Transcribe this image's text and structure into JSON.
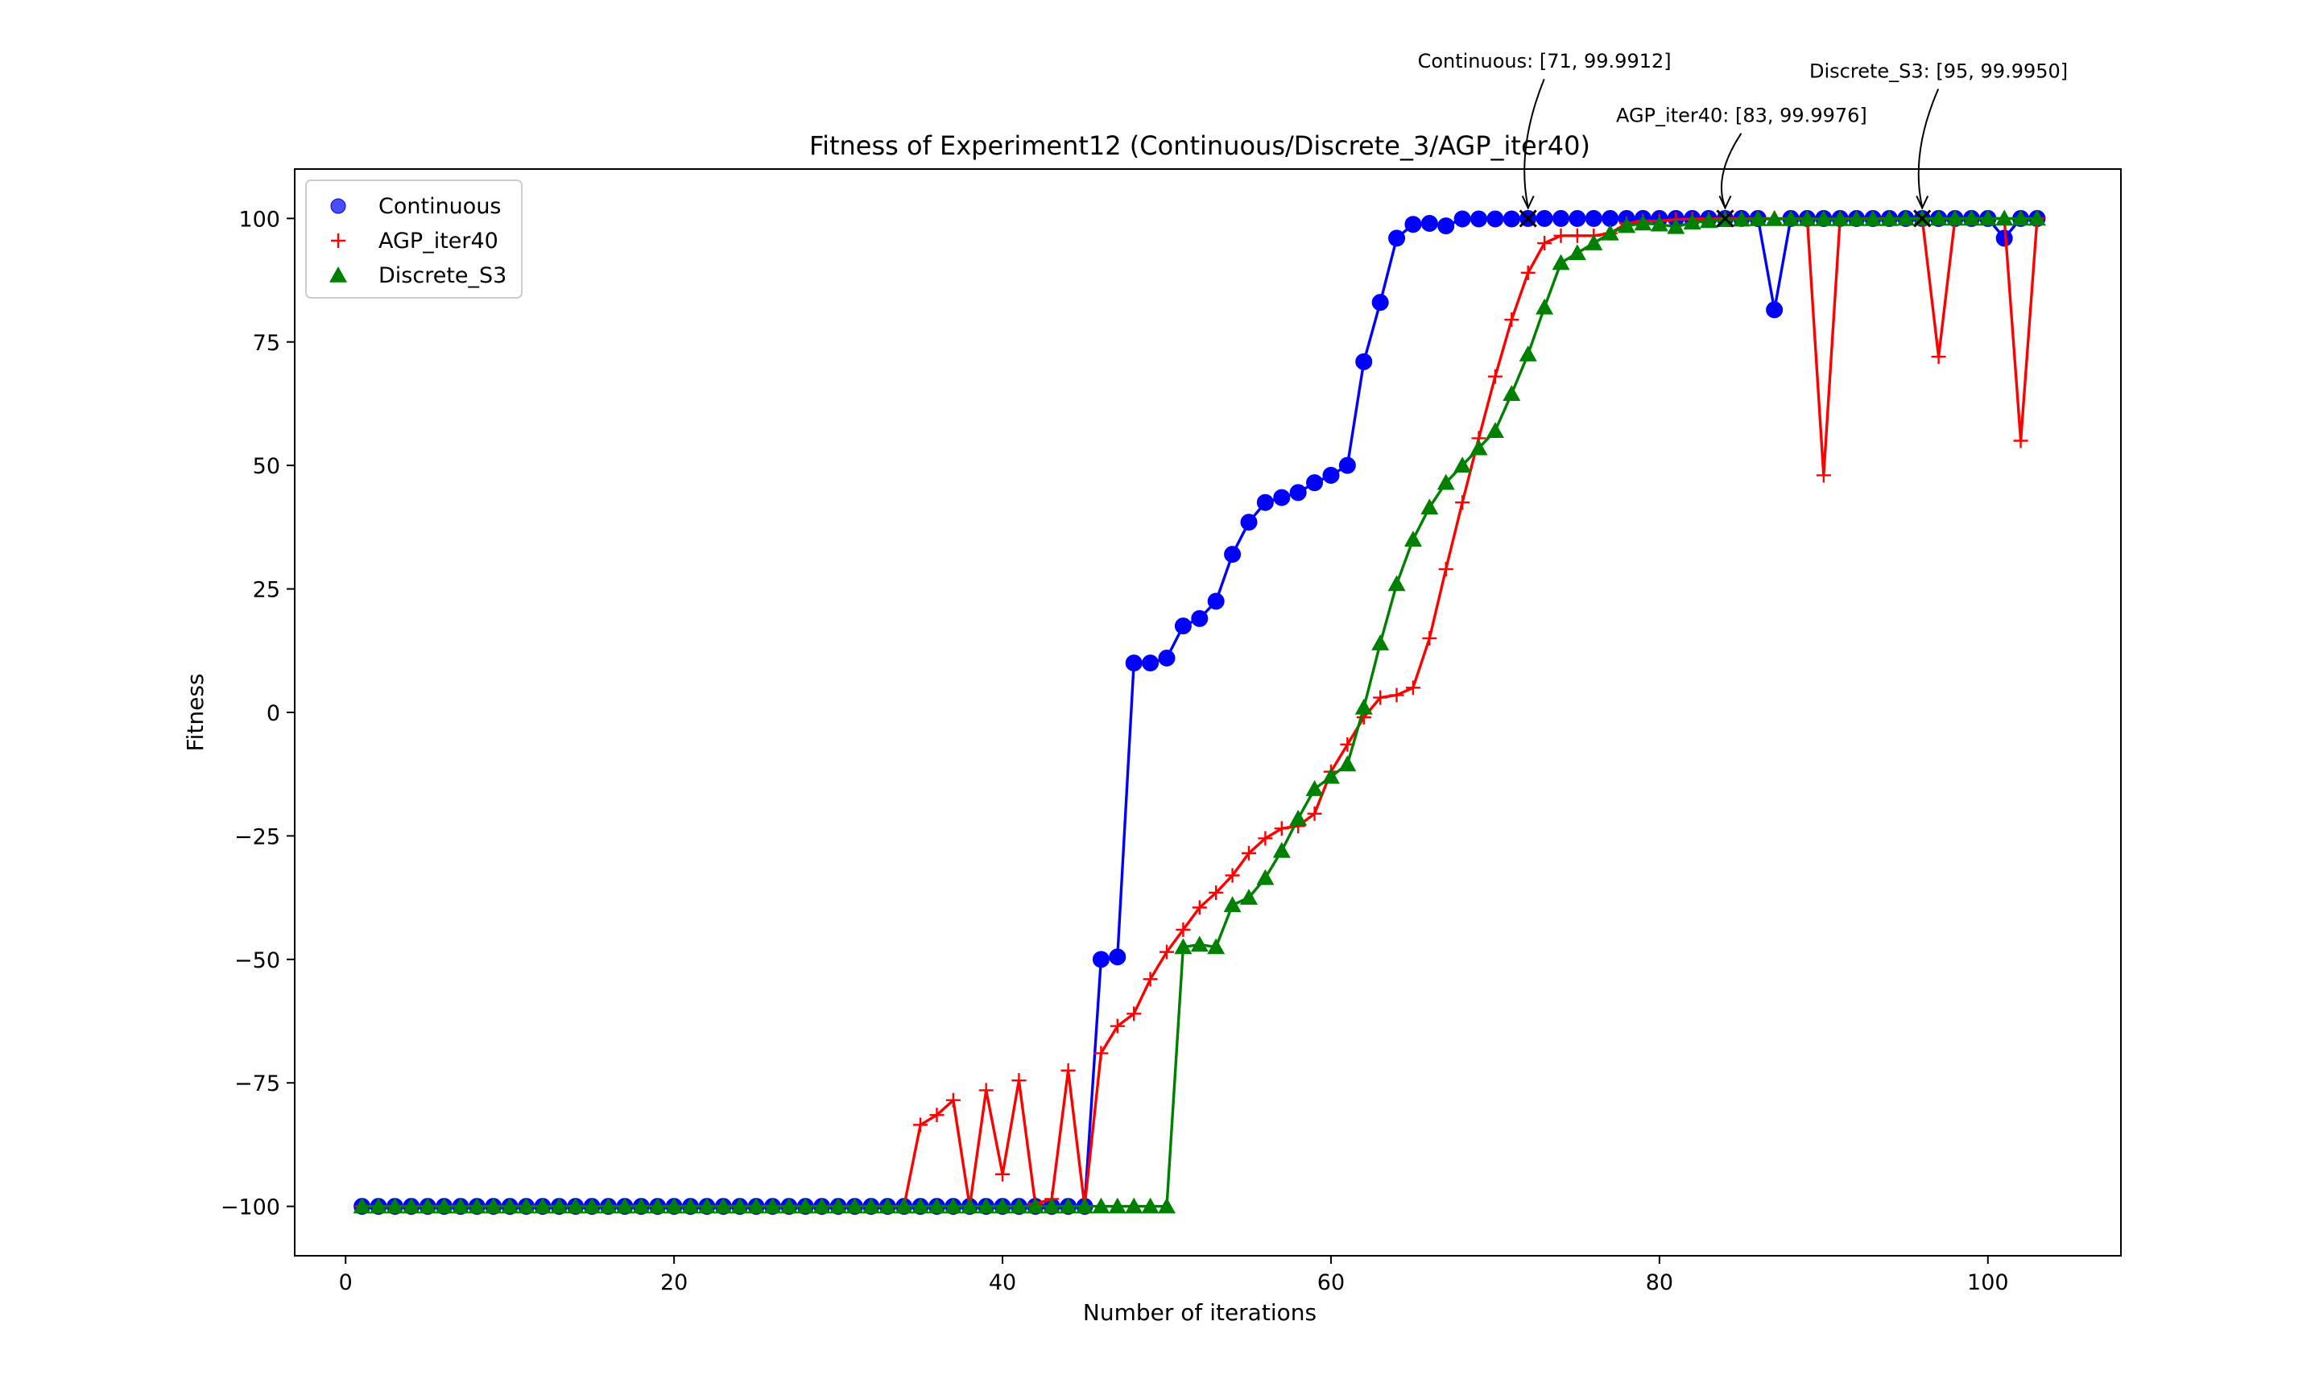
{
  "chart_data": {
    "type": "line",
    "title": "Fitness of Experiment12 (Continuous/Discrete_3/AGP_iter40)",
    "xlabel": "Number of iterations",
    "ylabel": "Fitness",
    "xlim": [
      -3.1,
      108.1
    ],
    "ylim": [
      -110,
      110
    ],
    "xticks": [
      0,
      20,
      40,
      60,
      80,
      100
    ],
    "xtick_labels": [
      "0",
      "20",
      "40",
      "60",
      "80",
      "100"
    ],
    "yticks": [
      -100,
      -75,
      -50,
      -25,
      0,
      25,
      50,
      75,
      100
    ],
    "ytick_labels": [
      "−100",
      "−75",
      "−50",
      "−25",
      "0",
      "25",
      "50",
      "75",
      "100"
    ],
    "grid": false,
    "legend_position": "top-left",
    "legend": [
      "Continuous",
      "AGP_iter40",
      "Discrete_S3"
    ],
    "series": [
      {
        "name": "Continuous",
        "color": "#0000ff",
        "marker": "circle",
        "x": [
          1,
          2,
          3,
          4,
          5,
          6,
          7,
          8,
          9,
          10,
          11,
          12,
          13,
          14,
          15,
          16,
          17,
          18,
          19,
          20,
          21,
          22,
          23,
          24,
          25,
          26,
          27,
          28,
          29,
          30,
          31,
          32,
          33,
          34,
          35,
          36,
          37,
          38,
          39,
          40,
          41,
          42,
          43,
          44,
          45,
          46,
          47,
          48,
          49,
          50,
          51,
          52,
          53,
          54,
          55,
          56,
          57,
          58,
          59,
          60,
          61,
          62,
          63,
          64,
          65,
          66,
          67,
          68,
          69,
          70,
          71,
          72,
          73,
          74,
          75,
          76,
          77,
          78,
          79,
          80,
          81,
          82,
          83,
          84,
          85,
          86,
          87,
          88,
          89,
          90,
          91,
          92,
          93,
          94,
          95,
          96,
          97,
          98,
          99,
          100,
          101,
          102,
          103
        ],
        "y": [
          -100,
          -100,
          -100,
          -100,
          -100,
          -100,
          -100,
          -100,
          -100,
          -100,
          -100,
          -100,
          -100,
          -100,
          -100,
          -100,
          -100,
          -100,
          -100,
          -100,
          -100,
          -100,
          -100,
          -100,
          -100,
          -100,
          -100,
          -100,
          -100,
          -100,
          -100,
          -100,
          -100,
          -100,
          -100,
          -100,
          -100,
          -100,
          -100,
          -100,
          -100,
          -100,
          -100,
          -100,
          -100,
          -50,
          -49.5,
          10,
          10,
          11,
          17.5,
          19,
          22.5,
          32,
          38.5,
          42.5,
          43.5,
          44.5,
          46.5,
          48,
          50,
          71,
          83,
          96,
          98.8,
          99,
          98.5,
          99.9,
          99.9,
          99.9,
          99.9,
          99.99,
          99.99,
          99.99,
          99.99,
          99.99,
          99.99,
          99.99,
          99.99,
          99.99,
          99.99,
          99.99,
          99.99,
          99.99,
          99.99,
          99.99,
          81.5,
          99.99,
          99.99,
          99.99,
          99.99,
          99.99,
          99.99,
          99.99,
          99.99,
          99.99,
          99.99,
          99.99,
          99.99,
          99.99,
          96,
          99.99,
          99.99
        ]
      },
      {
        "name": "AGP_iter40",
        "color": "#ff0000",
        "marker": "plus",
        "x": [
          1,
          2,
          3,
          4,
          5,
          6,
          7,
          8,
          9,
          10,
          11,
          12,
          13,
          14,
          15,
          16,
          17,
          18,
          19,
          20,
          21,
          22,
          23,
          24,
          25,
          26,
          27,
          28,
          29,
          30,
          31,
          32,
          33,
          34,
          35,
          36,
          37,
          38,
          39,
          40,
          41,
          42,
          43,
          44,
          45,
          46,
          47,
          48,
          49,
          50,
          51,
          52,
          53,
          54,
          55,
          56,
          57,
          58,
          59,
          60,
          61,
          62,
          63,
          64,
          65,
          66,
          67,
          68,
          69,
          70,
          71,
          72,
          73,
          74,
          75,
          76,
          77,
          78,
          79,
          80,
          81,
          82,
          83,
          84,
          85,
          86,
          87,
          88,
          89,
          90,
          91,
          92,
          93,
          94,
          95,
          96,
          97,
          98,
          99,
          100,
          101,
          102,
          103
        ],
        "y": [
          -100,
          -100,
          -100,
          -100,
          -100,
          -100,
          -100,
          -100,
          -100,
          -100,
          -100,
          -100,
          -100,
          -100,
          -100,
          -100,
          -100,
          -100,
          -100,
          -100,
          -100,
          -100,
          -100,
          -100,
          -100,
          -100,
          -100,
          -100,
          -100,
          -100,
          -100,
          -100,
          -100,
          -100,
          -83.5,
          -81.5,
          -78.5,
          -100,
          -76.5,
          -93.5,
          -74.5,
          -99.5,
          -98.5,
          -72.5,
          -100,
          -69,
          -63.5,
          -61,
          -54,
          -48.5,
          -44,
          -39.5,
          -36.5,
          -33,
          -28.5,
          -25.5,
          -23.5,
          -23,
          -20.5,
          -12,
          -6.5,
          -1,
          3,
          3.5,
          5,
          15,
          29,
          42.5,
          55.5,
          68,
          79.5,
          89,
          95,
          96.5,
          96.5,
          96.5,
          97,
          99,
          99.5,
          99.5,
          99.8,
          99.9,
          99.9,
          99.9976,
          99.9976,
          99.9976,
          99.9976,
          99.9976,
          99.9976,
          48,
          99.9976,
          99.9976,
          99.9976,
          99.9976,
          99.9976,
          99.9976,
          72,
          99.9976,
          99.9976,
          99.9976,
          99.9976,
          55,
          99.9976
        ]
      },
      {
        "name": "Discrete_S3",
        "color": "#008000",
        "marker": "triangle",
        "x": [
          1,
          2,
          3,
          4,
          5,
          6,
          7,
          8,
          9,
          10,
          11,
          12,
          13,
          14,
          15,
          16,
          17,
          18,
          19,
          20,
          21,
          22,
          23,
          24,
          25,
          26,
          27,
          28,
          29,
          30,
          31,
          32,
          33,
          34,
          35,
          36,
          37,
          38,
          39,
          40,
          41,
          42,
          43,
          44,
          45,
          46,
          47,
          48,
          49,
          50,
          51,
          52,
          53,
          54,
          55,
          56,
          57,
          58,
          59,
          60,
          61,
          62,
          63,
          64,
          65,
          66,
          67,
          68,
          69,
          70,
          71,
          72,
          73,
          74,
          75,
          76,
          77,
          78,
          79,
          80,
          81,
          82,
          83,
          84,
          85,
          86,
          87,
          88,
          89,
          90,
          91,
          92,
          93,
          94,
          95,
          96,
          97,
          98,
          99,
          100,
          101,
          102,
          103
        ],
        "y": [
          -100,
          -100,
          -100,
          -100,
          -100,
          -100,
          -100,
          -100,
          -100,
          -100,
          -100,
          -100,
          -100,
          -100,
          -100,
          -100,
          -100,
          -100,
          -100,
          -100,
          -100,
          -100,
          -100,
          -100,
          -100,
          -100,
          -100,
          -100,
          -100,
          -100,
          -100,
          -100,
          -100,
          -100,
          -100,
          -100,
          -100,
          -100,
          -100,
          -100,
          -100,
          -100,
          -100,
          -100,
          -100,
          -100,
          -100,
          -100,
          -100,
          -100,
          -47.5,
          -47,
          -47.5,
          -39,
          -37.5,
          -33.5,
          -28,
          -21.5,
          -15.5,
          -13,
          -10.5,
          1,
          14,
          26,
          35,
          41.5,
          46.5,
          50,
          53.5,
          57,
          64.5,
          72.5,
          82,
          91,
          93,
          95,
          97,
          98.5,
          99,
          98.8,
          98.3,
          99.2,
          99.5,
          99.7,
          99.8,
          99.9,
          99.9,
          99.9,
          99.9,
          99.9,
          99.9,
          99.9,
          99.9,
          99.9,
          99.995,
          99.995,
          99.995,
          99.995,
          99.995,
          99.995,
          99.995,
          99.995,
          99.995
        ]
      }
    ],
    "annotations": [
      {
        "text": "Continuous: [71, 99.9912]",
        "x": 72,
        "y": 99.9912,
        "text_x": 73,
        "text_y": 130.5
      },
      {
        "text": "AGP_iter40: [83, 99.9976]",
        "x": 84,
        "y": 99.9976,
        "text_x": 85,
        "text_y": 119.5
      },
      {
        "text": "Discrete_S3: [95, 99.9950]",
        "x": 96,
        "y": 99.995,
        "text_x": 97,
        "text_y": 128.5
      }
    ]
  }
}
